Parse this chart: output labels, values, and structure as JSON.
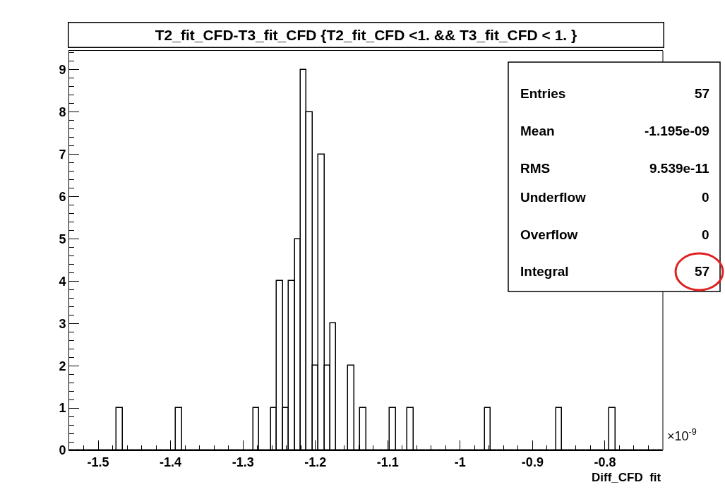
{
  "chart_data": {
    "type": "histogram",
    "title": "T2_fit_CFD-T3_fit_CFD {T2_fit_CFD <1. && T3_fit_CFD < 1. }",
    "xlabel": "Diff_CFD  fit",
    "annotations": [
      "×10$^{-9}$",
      "Entries",
      "57",
      "Mean",
      "-1.195e-09",
      "RMS",
      "9.539e-11",
      "Underflow",
      "0",
      "Overflow",
      "0",
      "Integral",
      "57"
    ],
    "bins": [
      -1.54,
      -1.5318,
      -1.5236,
      -1.5154,
      -1.5072,
      -1.499,
      -1.4908,
      -1.4826,
      -1.4744,
      -1.4662,
      -1.458,
      -1.4498,
      -1.4416,
      -1.4334,
      -1.4252,
      -1.417,
      -1.4088,
      -1.4006,
      -1.3924,
      -1.3842,
      -1.376,
      -1.3678,
      -1.3596,
      -1.3514,
      -1.3432,
      -1.335,
      -1.3268,
      -1.3186,
      -1.3104,
      -1.3022,
      -1.294,
      -1.2858,
      -1.2776,
      -1.2694,
      -1.2612,
      -1.253,
      -1.2448,
      -1.2366,
      -1.2284,
      -1.2202,
      -1.212,
      -1.2038,
      -1.1956,
      -1.1874,
      -1.1792,
      -1.171,
      -1.1628,
      -1.1546,
      -1.1464,
      -1.1382,
      -1.13,
      -1.1218,
      -1.1136,
      -1.1054,
      -1.0972,
      -1.089,
      -1.0808,
      -1.0726,
      -1.0644,
      -1.0562,
      -1.048,
      -1.0398,
      -1.0316,
      -1.0234,
      -1.0152,
      -1.007,
      -0.9988,
      -0.9906,
      -0.9824,
      -0.9742,
      -0.966,
      -0.9578,
      -0.9496,
      -0.9414,
      -0.9332,
      -0.925,
      -0.9168,
      -0.9086,
      -0.9004,
      -0.8922,
      -0.884,
      -0.8758,
      -0.8676,
      -0.8594,
      -0.8512,
      -0.843,
      -0.8348,
      -0.8266,
      -0.8184,
      -0.8102,
      -0.802,
      -0.7938,
      -0.7856,
      -0.7774,
      -0.7692,
      -0.761,
      -0.7528,
      -0.7446,
      -0.7364,
      -0.7282,
      -0.72
    ],
    "values": [
      0,
      0,
      0,
      0,
      0,
      0,
      0,
      0,
      1,
      0,
      0,
      0,
      0,
      0,
      0,
      0,
      0,
      0,
      1,
      0,
      0,
      0,
      0,
      0,
      0,
      0,
      0,
      0,
      0,
      0,
      0,
      1,
      0,
      0,
      1,
      4,
      1,
      4,
      5,
      9,
      8,
      2,
      7,
      2,
      3,
      0,
      0,
      2,
      0,
      1,
      0,
      0,
      0,
      0,
      1,
      0,
      0,
      1,
      0,
      0,
      0,
      0,
      0,
      0,
      0,
      0,
      0,
      0,
      0,
      0,
      1,
      0,
      0,
      0,
      0,
      0,
      0,
      0,
      0,
      0,
      0,
      0,
      1,
      0,
      0,
      0,
      0,
      0,
      0,
      0,
      0,
      1,
      0,
      0,
      0,
      0,
      0,
      0,
      0,
      0
    ],
    "color": "#000000",
    "xlim": [
      -1.54,
      -0.72
    ],
    "xticks": [
      -1.5,
      -1.4,
      -1.3,
      -1.2,
      -1.1,
      -1,
      -0.9,
      -0.8
    ],
    "ylim": [
      0,
      9.45
    ],
    "yticks": [
      0,
      1,
      2,
      3,
      4,
      5,
      6,
      7,
      8,
      9
    ]
  }
}
